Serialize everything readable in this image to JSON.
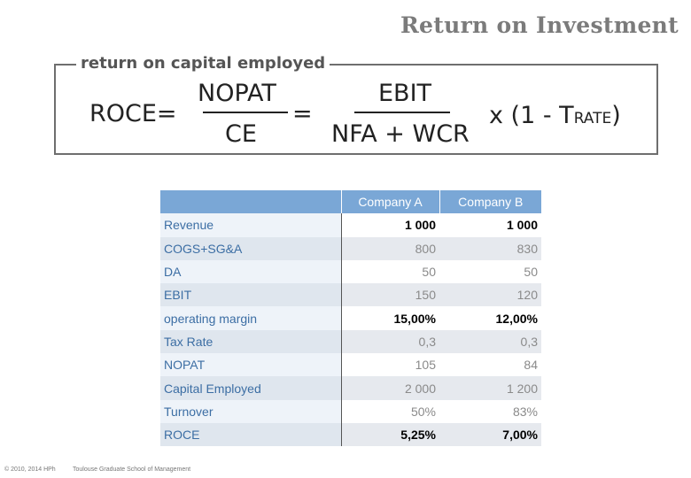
{
  "title": "Return on Investment",
  "formula": {
    "legend": "return on capital employed",
    "lhs": "ROCE=",
    "frac1_num": "NOPAT",
    "frac1_den": "CE",
    "equals": "=",
    "frac2_num": "EBIT",
    "frac2_den": "NFA + WCR",
    "tail": "x (1 - T",
    "tail_sub": "RATE",
    "tail_close": ")"
  },
  "table": {
    "headers": [
      "",
      "Company A",
      "Company B"
    ],
    "rows": [
      {
        "label": "Revenue",
        "a": "1 000",
        "b": "1 000",
        "bold": true
      },
      {
        "label": "COGS+SG&A",
        "a": "800",
        "b": "830",
        "bold": false
      },
      {
        "label": "DA",
        "a": "50",
        "b": "50",
        "bold": false
      },
      {
        "label": "EBIT",
        "a": "150",
        "b": "120",
        "bold": false
      },
      {
        "label": "operating margin",
        "a": "15,00%",
        "b": "12,00%",
        "bold": true
      },
      {
        "label": "Tax Rate",
        "a": "0,3",
        "b": "0,3",
        "bold": false
      },
      {
        "label": "NOPAT",
        "a": "105",
        "b": "84",
        "bold": false
      },
      {
        "label": "Capital Employed",
        "a": "2 000",
        "b": "1 200",
        "bold": false
      },
      {
        "label": "Turnover",
        "a": "50%",
        "b": "83%",
        "bold": false
      },
      {
        "label": "ROCE",
        "a": "5,25%",
        "b": "7,00%",
        "bold": true
      }
    ]
  },
  "footer": {
    "copyright": "© 2010, 2014 HPh",
    "school": "Toulouse Graduate School of Management"
  }
}
